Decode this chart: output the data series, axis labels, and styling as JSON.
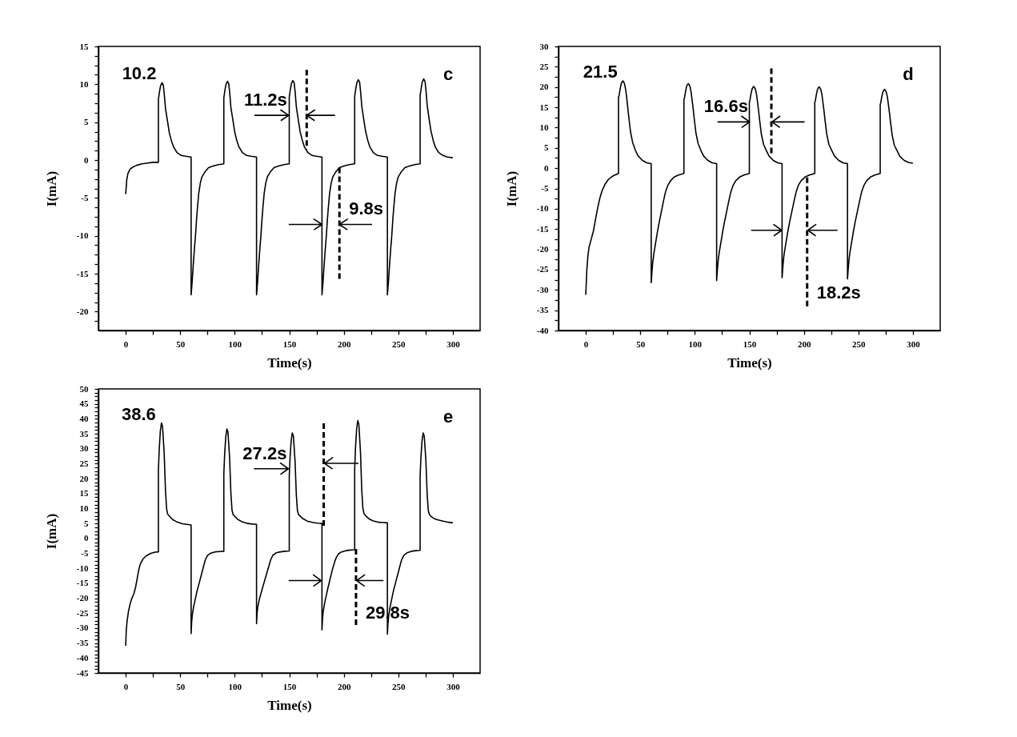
{
  "chart_data": [
    {
      "type": "line",
      "xlabel": "Time(s)",
      "ylabel": "I(mA)",
      "xlim": [
        -25,
        325
      ],
      "ylim": [
        -22.5,
        15
      ],
      "xticks": [
        0,
        {
          "value": 25,
          "label": null
        },
        50,
        {
          "value": 75,
          "label": null
        },
        100,
        {
          "value": 125,
          "label": null
        },
        150,
        {
          "value": 175,
          "label": null
        },
        200,
        {
          "value": 225,
          "label": null
        },
        250,
        {
          "value": 275,
          "label": null
        },
        300
      ],
      "yticks": [
        {
          "value": -21.25,
          "label": null
        },
        -20,
        {
          "value": -18.75,
          "label": null
        },
        {
          "value": -17.5,
          "label": null
        },
        {
          "value": -16.25,
          "label": null
        },
        -15,
        {
          "value": -13.75,
          "label": null
        },
        {
          "value": -12.5,
          "label": null
        },
        {
          "value": -11.25,
          "label": null
        },
        -10,
        {
          "value": -8.75,
          "label": null
        },
        {
          "value": -7.5,
          "label": null
        },
        {
          "value": -6.25,
          "label": null
        },
        -5,
        {
          "value": -3.75,
          "label": null
        },
        {
          "value": -2.5,
          "label": null
        },
        {
          "value": -1.25,
          "label": null
        },
        0,
        {
          "value": 1.25,
          "label": null
        },
        {
          "value": 2.5,
          "label": null
        },
        {
          "value": 3.75,
          "label": null
        },
        5,
        {
          "value": 6.25,
          "label": null
        },
        {
          "value": 7.5,
          "label": null
        },
        {
          "value": 8.75,
          "label": null
        },
        10,
        {
          "value": 11.25,
          "label": null
        },
        {
          "value": 12.5,
          "label": null
        },
        {
          "value": 13.75,
          "label": null
        },
        15
      ],
      "series": [
        {
          "color": "#000000",
          "x": [
            0,
            1,
            2,
            4,
            7,
            10,
            15,
            20,
            25,
            30,
            30,
            31,
            32,
            33.3,
            34.5,
            35.5,
            36.5,
            38.5,
            40,
            42,
            44,
            47,
            51,
            55,
            60,
            60,
            61,
            62,
            63,
            64,
            65,
            66,
            67,
            68.5,
            70,
            73,
            76,
            80,
            85,
            90,
            90,
            91,
            92,
            93.3,
            94.5,
            95.5,
            96.5,
            98.5,
            100,
            102,
            104,
            107,
            111,
            115,
            120,
            120,
            121,
            122,
            123,
            124,
            125,
            126,
            127,
            128.5,
            130,
            133,
            136,
            140,
            145,
            150,
            150,
            151,
            152,
            153.3,
            154.5,
            155.5,
            156.5,
            158.5,
            160,
            162,
            164,
            167,
            171,
            175,
            180,
            180,
            181,
            182,
            183,
            184,
            185,
            186,
            187,
            188.5,
            190,
            193,
            196,
            200,
            205,
            210,
            210,
            211,
            212,
            213.3,
            214.5,
            215.5,
            216.5,
            218.5,
            220,
            222,
            224,
            227,
            231,
            235,
            240,
            240,
            241,
            242,
            243,
            244,
            245,
            246,
            247,
            248.5,
            250,
            253,
            256,
            260,
            265,
            270,
            270,
            271,
            272,
            273.3,
            274.5,
            275.5,
            276.5,
            278.5,
            280,
            282,
            284,
            287,
            291,
            295,
            300
          ],
          "values": [
            -4.5,
            -2.6,
            -1.8,
            -1.2,
            -0.9,
            -0.7,
            -0.5,
            -0.4,
            -0.3,
            -0.3,
            8.0,
            9.0,
            9.8,
            10.2,
            9.9,
            8.5,
            6.8,
            5.0,
            3.6,
            2.5,
            1.7,
            1.0,
            0.6,
            0.5,
            0.4,
            -17.8,
            -16,
            -13.8,
            -11.8,
            -10,
            -7.8,
            -6,
            -4.4,
            -3,
            -2.2,
            -1.5,
            -1.0,
            -0.8,
            -0.6,
            -0.5,
            8.2,
            9.2,
            10.0,
            10.4,
            10.1,
            8.7,
            6.9,
            5.1,
            3.7,
            2.5,
            1.7,
            1.0,
            0.6,
            0.5,
            0.4,
            -17.8,
            -16,
            -13.8,
            -11.8,
            -10,
            -7.8,
            -6,
            -4.4,
            -3,
            -2.2,
            -1.5,
            -1.0,
            -0.8,
            -0.6,
            -0.5,
            8.3,
            9.3,
            10.1,
            10.5,
            10.2,
            8.8,
            7.0,
            5.1,
            3.7,
            2.6,
            1.7,
            1.0,
            0.6,
            0.5,
            0.4,
            -17.8,
            -16,
            -13.8,
            -11.8,
            -10,
            -7.8,
            -6,
            -4.4,
            -3,
            -2.2,
            -1.5,
            -1.0,
            -0.8,
            -0.6,
            -0.5,
            8.4,
            9.4,
            10.2,
            10.6,
            10.3,
            8.9,
            7.1,
            5.2,
            3.8,
            2.6,
            1.7,
            1.0,
            0.6,
            0.5,
            0.4,
            -17.8,
            -16,
            -13.8,
            -11.8,
            -10,
            -7.8,
            -6,
            -4.4,
            -3,
            -2.2,
            -1.5,
            -1.0,
            -0.8,
            -0.6,
            -0.5,
            8.5,
            9.5,
            10.3,
            10.7,
            10.4,
            9.0,
            7.2,
            5.2,
            3.8,
            2.6,
            1.7,
            1.0,
            0.6,
            0.4,
            0.3
          ]
        },
        {
          "color": "#000000",
          "line_style": "dashed",
          "x": [
            166,
            166
          ],
          "values": [
            11.9,
            1.4
          ]
        },
        {
          "color": "#000000",
          "line_style": "dashed",
          "x": [
            196,
            196
          ],
          "values": [
            -1.0,
            -15.9
          ]
        },
        {
          "color": "#000000",
          "x": [
            118,
            149.5,
            142.2,
            149.5,
            142.2
          ],
          "values": [
            5.9,
            5.9,
            6.6,
            5.9,
            5.2
          ]
        },
        {
          "color": "#000000",
          "x": [
            192,
            166,
            173.3,
            166,
            173.3
          ],
          "values": [
            5.9,
            5.9,
            6.6,
            5.9,
            5.2
          ]
        },
        {
          "color": "#000000",
          "x": [
            149.5,
            180,
            172.7,
            180,
            172.7
          ],
          "values": [
            -8.5,
            -8.5,
            -7.8,
            -8.5,
            -9.2
          ]
        },
        {
          "color": "#000000",
          "x": [
            226,
            196,
            203.3,
            196,
            203.3
          ],
          "values": [
            -8.5,
            -8.5,
            -7.8,
            -8.5,
            -9.2
          ]
        }
      ],
      "annotations": [
        {
          "text": "10.2",
          "x": 33.3,
          "y": 10.2
        },
        "c",
        {
          "text": "11.2s",
          "x": 149.5,
          "y": 5.9
        },
        {
          "text": "9.8s",
          "x": 196,
          "y": -7.2
        }
      ]
    },
    {
      "type": "line",
      "xlabel": "Time(s)",
      "ylabel": "I(mA)",
      "xlim": [
        -25,
        325
      ],
      "ylim": [
        -40,
        30
      ],
      "xticks": [
        0,
        {
          "value": 25,
          "label": null
        },
        50,
        {
          "value": 75,
          "label": null
        },
        100,
        {
          "value": 125,
          "label": null
        },
        150,
        {
          "value": 175,
          "label": null
        },
        200,
        {
          "value": 225,
          "label": null
        },
        250,
        {
          "value": 275,
          "label": null
        },
        300
      ],
      "yticks": [
        -40,
        {
          "value": -37.5,
          "label": null
        },
        -35,
        {
          "value": -32.5,
          "label": null
        },
        -30,
        {
          "value": -27.5,
          "label": null
        },
        -25,
        {
          "value": -22.5,
          "label": null
        },
        -20,
        {
          "value": -17.5,
          "label": null
        },
        -15,
        {
          "value": -12.5,
          "label": null
        },
        -10,
        {
          "value": -7.5,
          "label": null
        },
        -5,
        {
          "value": -2.5,
          "label": null
        },
        0,
        {
          "value": 2.5,
          "label": null
        },
        5,
        {
          "value": 7.5,
          "label": null
        },
        10,
        {
          "value": 12.5,
          "label": null
        },
        15,
        {
          "value": 17.5,
          "label": null
        },
        20,
        {
          "value": 22.5,
          "label": null
        },
        25,
        {
          "value": 27.5,
          "label": null
        },
        30
      ],
      "series": [
        {
          "color": "#000000",
          "x": [
            0,
            1,
            2,
            3,
            5,
            7,
            9,
            11,
            13,
            15,
            18,
            21,
            25,
            30,
            30,
            30.5,
            31.5,
            32.5,
            33.5,
            34.2,
            35.5,
            36.5,
            37.5,
            38.5,
            39.5,
            41,
            43,
            45.5,
            48,
            52,
            56,
            60,
            60,
            60.7,
            61.5,
            62.5,
            64,
            65.5,
            67,
            68.5,
            70,
            71.5,
            73,
            75,
            77.5,
            81,
            85,
            90,
            90,
            90.5,
            91.5,
            92.5,
            93.5,
            94.2,
            95.5,
            96.5,
            97.5,
            98.5,
            99.5,
            101,
            103,
            105.5,
            108,
            112,
            116,
            120,
            120,
            120.7,
            121.5,
            122.5,
            124,
            125.5,
            127,
            128.5,
            130,
            131.5,
            133,
            135,
            137.5,
            141,
            145,
            150,
            150,
            150.5,
            151.5,
            152.5,
            153.5,
            154.2,
            155.5,
            156.5,
            157.5,
            158.5,
            159.5,
            161,
            163,
            165.5,
            168,
            172,
            176,
            180,
            180,
            180.7,
            181.5,
            182.5,
            184,
            185.5,
            187,
            188.5,
            190,
            191.5,
            193,
            195,
            197.5,
            201,
            205,
            210,
            210,
            210.5,
            211.5,
            212.5,
            213.5,
            214.2,
            215.5,
            216.5,
            217.5,
            218.5,
            219.5,
            221,
            223,
            225.5,
            228,
            232,
            236,
            240,
            240,
            240.7,
            241.5,
            242.5,
            244,
            245.5,
            247,
            248.5,
            250,
            251.5,
            253,
            255,
            257.5,
            261,
            265,
            270,
            270,
            270.5,
            271.5,
            272.5,
            273.5,
            274.2,
            275.5,
            276.5,
            277.5,
            278.5,
            279.5,
            281,
            283,
            285.5,
            288,
            292,
            296,
            300
          ],
          "values": [
            -31.2,
            -25,
            -21.5,
            -19.5,
            -17.5,
            -15.5,
            -12.5,
            -9.7,
            -7.3,
            -5.5,
            -3.8,
            -2.7,
            -1.9,
            -1.3,
            17.5,
            17.8,
            19.5,
            20.8,
            21.4,
            21.5,
            20.8,
            19.5,
            17.5,
            15,
            12.5,
            9,
            6.3,
            4.4,
            3.0,
            1.9,
            1.3,
            1.1,
            -28.2,
            -25.5,
            -23,
            -21,
            -18.5,
            -16,
            -13.8,
            -11.8,
            -9.8,
            -7.8,
            -6,
            -4.4,
            -3.2,
            -2.2,
            -1.7,
            -1.3,
            16.9,
            17.3,
            18.9,
            20.2,
            20.7,
            20.8,
            20.2,
            18.9,
            16.8,
            14.6,
            12.1,
            8.7,
            6.1,
            4.4,
            3.0,
            1.9,
            1.3,
            1.1,
            -27.7,
            -25.0,
            -22.6,
            -20.6,
            -18.2,
            -15.7,
            -13.5,
            -11.6,
            -9.6,
            -7.7,
            -5.9,
            -4.3,
            -3.1,
            -2.2,
            -1.7,
            -1.3,
            16.3,
            16.7,
            18.3,
            19.5,
            20.0,
            20.1,
            19.5,
            18.3,
            16.3,
            14.1,
            11.7,
            8.4,
            5.9,
            4.4,
            3.0,
            1.9,
            1.3,
            1.1,
            -27.0,
            -24.4,
            -22.0,
            -20.1,
            -17.7,
            -15.3,
            -13.2,
            -11.3,
            -9.4,
            -7.5,
            -5.8,
            -4.2,
            -3.1,
            -2.2,
            -1.7,
            -1.3,
            16.2,
            16.6,
            18.2,
            19.4,
            19.9,
            20.0,
            19.4,
            18.2,
            16.2,
            14.0,
            11.6,
            8.4,
            5.8,
            4.4,
            3.0,
            1.9,
            1.3,
            1.1,
            -27.3,
            -24.7,
            -22.3,
            -20.3,
            -17.9,
            -15.5,
            -13.3,
            -11.4,
            -9.5,
            -7.6,
            -5.8,
            -4.3,
            -3.1,
            -2.2,
            -1.7,
            -1.3,
            15.7,
            16.1,
            17.7,
            18.8,
            19.3,
            19.4,
            18.8,
            17.7,
            15.7,
            13.6,
            11.3,
            8.1,
            5.6,
            4.3,
            2.9,
            1.9,
            1.4,
            1.2
          ]
        },
        {
          "color": "#000000",
          "line_style": "dashed",
          "x": [
            170.2,
            170.2
          ],
          "values": [
            24.6,
            3.4
          ]
        },
        {
          "color": "#000000",
          "line_style": "dashed",
          "x": [
            203,
            203
          ],
          "values": [
            -2.3,
            -34.3
          ]
        },
        {
          "color": "#000000",
          "x": [
            120.8,
            150.3,
            143.0,
            150.3,
            143.0
          ],
          "values": [
            11.4,
            11.4,
            12.8,
            11.4,
            10.0
          ]
        },
        {
          "color": "#000000",
          "x": [
            200.7,
            170.7,
            178.0,
            170.7,
            178.0
          ],
          "values": [
            11.4,
            11.4,
            12.8,
            11.4,
            10.0
          ]
        },
        {
          "color": "#000000",
          "x": [
            151.6,
            179.7,
            172.4,
            179.7,
            172.4
          ],
          "values": [
            -15.3,
            -15.3,
            -13.9,
            -15.3,
            -16.7
          ]
        },
        {
          "color": "#000000",
          "x": [
            230.9,
            203.6,
            210.9,
            203.6,
            210.9
          ],
          "values": [
            -15.3,
            -15.3,
            -13.9,
            -15.3,
            -16.7
          ]
        }
      ],
      "annotations": [
        {
          "text": "21.5",
          "x": 34.2,
          "y": 21.5
        },
        "d",
        {
          "text": "16.6s",
          "x": 150.3,
          "y": 11.4
        },
        {
          "text": "18.2s",
          "x": 203,
          "y": -32.2
        }
      ]
    },
    {
      "type": "line",
      "xlabel": "Time(s)",
      "ylabel": "I(mA)",
      "xlim": [
        -25,
        325
      ],
      "ylim": [
        -45,
        50
      ],
      "xticks": [
        0,
        {
          "value": 25,
          "label": null
        },
        50,
        {
          "value": 75,
          "label": null
        },
        100,
        {
          "value": 125,
          "label": null
        },
        150,
        {
          "value": 175,
          "label": null
        },
        200,
        {
          "value": 225,
          "label": null
        },
        250,
        {
          "value": 275,
          "label": null
        },
        300
      ],
      "yticks": [
        -45,
        {
          "value": -43.75,
          "label": null
        },
        {
          "value": -42.5,
          "label": null
        },
        {
          "value": -41.25,
          "label": null
        },
        -40,
        {
          "value": -38.75,
          "label": null
        },
        {
          "value": -37.5,
          "label": null
        },
        {
          "value": -36.25,
          "label": null
        },
        -35,
        {
          "value": -33.75,
          "label": null
        },
        {
          "value": -32.5,
          "label": null
        },
        {
          "value": -31.25,
          "label": null
        },
        -30,
        {
          "value": -28.75,
          "label": null
        },
        {
          "value": -27.5,
          "label": null
        },
        {
          "value": -26.25,
          "label": null
        },
        -25,
        {
          "value": -23.75,
          "label": null
        },
        {
          "value": -22.5,
          "label": null
        },
        {
          "value": -21.25,
          "label": null
        },
        -20,
        {
          "value": -18.75,
          "label": null
        },
        {
          "value": -17.5,
          "label": null
        },
        {
          "value": -16.25,
          "label": null
        },
        -15,
        {
          "value": -13.75,
          "label": null
        },
        {
          "value": -12.5,
          "label": null
        },
        {
          "value": -11.25,
          "label": null
        },
        -10,
        {
          "value": -8.75,
          "label": null
        },
        {
          "value": -7.5,
          "label": null
        },
        {
          "value": -6.25,
          "label": null
        },
        -5,
        {
          "value": -3.75,
          "label": null
        },
        {
          "value": -2.5,
          "label": null
        },
        {
          "value": -1.25,
          "label": null
        },
        0,
        {
          "value": 1.25,
          "label": null
        },
        {
          "value": 2.5,
          "label": null
        },
        {
          "value": 3.75,
          "label": null
        },
        5,
        {
          "value": 6.25,
          "label": null
        },
        {
          "value": 7.5,
          "label": null
        },
        {
          "value": 8.75,
          "label": null
        },
        10,
        {
          "value": 11.25,
          "label": null
        },
        {
          "value": 12.5,
          "label": null
        },
        {
          "value": 13.75,
          "label": null
        },
        15,
        {
          "value": 16.25,
          "label": null
        },
        {
          "value": 17.5,
          "label": null
        },
        {
          "value": 18.75,
          "label": null
        },
        20,
        {
          "value": 21.25,
          "label": null
        },
        {
          "value": 22.5,
          "label": null
        },
        {
          "value": 23.75,
          "label": null
        },
        25,
        {
          "value": 26.25,
          "label": null
        },
        {
          "value": 27.5,
          "label": null
        },
        {
          "value": 28.75,
          "label": null
        },
        30,
        {
          "value": 31.25,
          "label": null
        },
        {
          "value": 32.5,
          "label": null
        },
        {
          "value": 33.75,
          "label": null
        },
        35,
        {
          "value": 36.25,
          "label": null
        },
        {
          "value": 37.5,
          "label": null
        },
        {
          "value": 38.75,
          "label": null
        },
        40,
        {
          "value": 41.25,
          "label": null
        },
        {
          "value": 42.5,
          "label": null
        },
        {
          "value": 43.75,
          "label": null
        },
        45,
        {
          "value": 46.25,
          "label": null
        },
        {
          "value": 47.5,
          "label": null
        },
        {
          "value": 48.75,
          "label": null
        },
        50
      ],
      "series": [
        {
          "color": "#000000",
          "x": [
            0,
            0.5,
            1.2,
            2.5,
            4,
            5.5,
            7.5,
            9,
            10.5,
            12,
            13.5,
            16,
            19,
            23,
            27,
            30,
            30,
            30.8,
            31.8,
            32.8,
            33.8,
            35.3,
            36.5,
            37.5,
            38.5,
            40.5,
            43,
            46.5,
            51.9,
            56,
            60,
            60,
            60.5,
            61.1,
            62.5,
            64,
            65.5,
            67.5,
            69.5,
            71.5,
            73,
            75,
            78,
            82,
            86,
            90,
            90,
            90.8,
            91.8,
            92.8,
            93.8,
            95.3,
            96.5,
            97.5,
            98.5,
            100.5,
            103,
            106.5,
            111.9,
            116,
            120,
            120,
            120.5,
            121.1,
            122.5,
            124,
            125.5,
            127.5,
            129.5,
            131.5,
            133,
            135,
            138,
            142,
            146,
            150,
            150,
            150.8,
            151.8,
            152.8,
            153.8,
            155.3,
            156.5,
            157.5,
            158.5,
            160.5,
            163,
            166.5,
            171.9,
            176,
            180,
            180,
            180.5,
            181.1,
            182.5,
            184,
            185.5,
            187.5,
            189.5,
            191.5,
            193,
            195,
            198,
            202,
            206,
            210,
            210,
            210.8,
            211.8,
            212.8,
            213.8,
            215.3,
            216.5,
            217.5,
            218.5,
            220.5,
            223,
            226.5,
            231.9,
            236,
            240,
            240,
            240.5,
            241.1,
            242.5,
            244,
            245.5,
            247.5,
            249.5,
            251.5,
            253,
            255,
            258,
            262,
            266,
            270,
            270,
            270.8,
            271.8,
            272.8,
            273.8,
            275.3,
            276.5,
            277.5,
            278.5,
            280.5,
            283,
            286.5,
            291.9,
            296,
            300
          ],
          "values": [
            -35.9,
            -31,
            -28,
            -24.5,
            -22,
            -20.2,
            -18.5,
            -16.5,
            -13.5,
            -10.5,
            -8.5,
            -6.8,
            -5.8,
            -5.0,
            -4.6,
            -4.5,
            22.8,
            30,
            36,
            38.6,
            37.5,
            28.5,
            16,
            10,
            8.1,
            7.3,
            6.3,
            5.6,
            4.9,
            4.7,
            4.5,
            -31.8,
            -28,
            -25.5,
            -22.5,
            -20,
            -17.5,
            -14.8,
            -12,
            -9.2,
            -7.2,
            -5.7,
            -4.9,
            -4.5,
            -4.4,
            -4.3,
            21.6,
            28.5,
            34,
            36.6,
            35.5,
            27,
            15,
            9.5,
            8.0,
            7.2,
            6.3,
            5.6,
            5.0,
            4.8,
            4.7,
            -28.5,
            -25,
            -23,
            -20.5,
            -18.5,
            -16.5,
            -14,
            -11.5,
            -9,
            -7.1,
            -5.6,
            -4.8,
            -4.5,
            -4.3,
            -4.2,
            20.8,
            27.5,
            32.8,
            35.3,
            34.2,
            26,
            14.5,
            9.3,
            8.0,
            7.3,
            6.5,
            5.8,
            5.3,
            5.1,
            5.0,
            -30.6,
            -27,
            -24.5,
            -21.5,
            -19,
            -16.5,
            -13.5,
            -10.5,
            -8,
            -6.5,
            -5.2,
            -4.5,
            -4.1,
            -3.9,
            -3.8,
            23.2,
            30.7,
            36.6,
            39.4,
            38.2,
            29,
            16,
            10.2,
            8.3,
            7.4,
            6.6,
            5.9,
            5.4,
            5.3,
            5.2,
            -32.0,
            -28.5,
            -26,
            -22.8,
            -20.2,
            -17.6,
            -14.8,
            -12,
            -9.2,
            -7.2,
            -5.7,
            -4.8,
            -4.3,
            -4.1,
            -4.0,
            20.8,
            27.5,
            32.8,
            35.3,
            34.2,
            26,
            14.5,
            9.3,
            8.0,
            7.2,
            6.6,
            6.2,
            5.7,
            5.4,
            5.2
          ]
        },
        {
          "color": "#000000",
          "line_style": "dashed",
          "x": [
            181.6,
            181.6
          ],
          "values": [
            38.5,
            3.8
          ]
        },
        {
          "color": "#000000",
          "line_style": "dashed",
          "x": [
            211.2,
            211.2
          ],
          "values": [
            -3.5,
            -29.6
          ]
        },
        {
          "color": "#000000",
          "x": [
            117.6,
            149.2,
            141.9,
            149.2,
            141.9
          ],
          "values": [
            23.3,
            23.3,
            25.2,
            23.3,
            21.4
          ]
        },
        {
          "color": "#000000",
          "x": [
            213.6,
            182.4,
            189.7,
            182.4,
            189.7
          ],
          "values": [
            25.1,
            25.1,
            27.0,
            25.1,
            23.2
          ]
        },
        {
          "color": "#000000",
          "x": [
            149.5,
            179.4,
            172.1,
            179.4,
            172.1
          ],
          "values": [
            -14.1,
            -14.1,
            -12.2,
            -14.1,
            -16.0
          ]
        },
        {
          "color": "#000000",
          "x": [
            236.4,
            211.8,
            219.1,
            211.8,
            219.1
          ],
          "values": [
            -14.1,
            -14.1,
            -12.2,
            -14.1,
            -16.0
          ]
        }
      ],
      "annotations": [
        {
          "text": "38.6",
          "x": 32.8,
          "y": 38.6
        },
        "e",
        {
          "text": "27.2s",
          "x": 149.2,
          "y": 23.3
        },
        {
          "text": "29.8s",
          "x": 211.2,
          "y": -26.9
        }
      ]
    }
  ]
}
